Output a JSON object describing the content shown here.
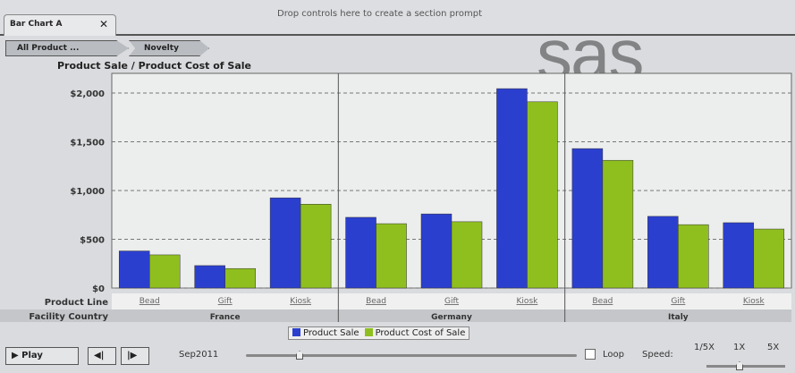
{
  "tab": {
    "label": "Bar Chart A",
    "close": "✕"
  },
  "drop_hint": "Drop controls here to create a section prompt",
  "breadcrumb": [
    "All Product ...",
    "Novelty"
  ],
  "logo_text": "sas",
  "controls": {
    "play": "▶  Play",
    "prev": "◀|",
    "next": "|▶",
    "date": "Sep2011",
    "loop": "Loop",
    "speed": "Speed:",
    "speeds": [
      "1/5X",
      "1X",
      "5X"
    ]
  },
  "colors": {
    "sale": "#2b3fcf",
    "cost": "#8fbf1f"
  },
  "chart_data": {
    "type": "bar",
    "title": "Product Sale / Product Cost of Sale",
    "row_labels": [
      "Product Line",
      "Facility Country"
    ],
    "groups": [
      {
        "country": "France",
        "lines": [
          "Bead",
          "Gift",
          "Kiosk"
        ]
      },
      {
        "country": "Germany",
        "lines": [
          "Bead",
          "Gift",
          "Kiosk"
        ]
      },
      {
        "country": "Italy",
        "lines": [
          "Bead",
          "Gift",
          "Kiosk"
        ]
      }
    ],
    "series": [
      {
        "name": "Product Sale",
        "values": [
          380,
          230,
          925,
          725,
          760,
          2045,
          1430,
          735,
          670
        ]
      },
      {
        "name": "Product Cost of Sale",
        "values": [
          340,
          200,
          860,
          660,
          680,
          1910,
          1310,
          650,
          605
        ]
      }
    ],
    "ylim": [
      0,
      2000
    ],
    "yticks": [
      0,
      500,
      1000,
      1500,
      2000
    ],
    "ytick_labels": [
      "$0",
      "$500",
      "$1,000",
      "$1,500",
      "$2,000"
    ],
    "grid": true,
    "legend": "bottom"
  }
}
